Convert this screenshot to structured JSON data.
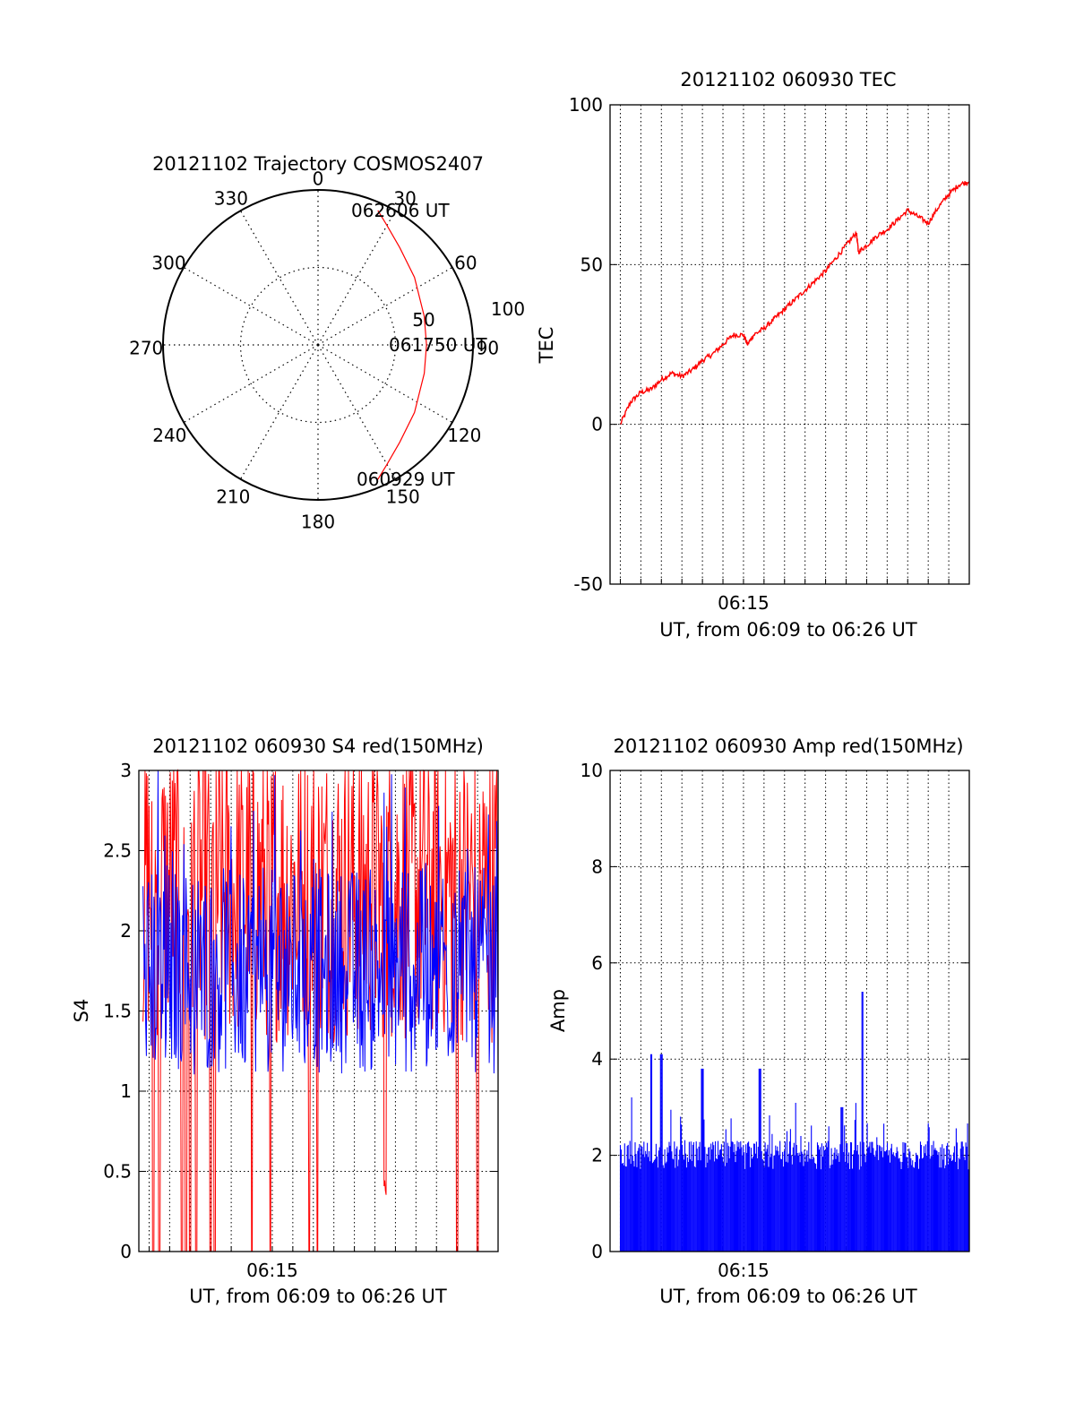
{
  "colors": {
    "red": "#ff0000",
    "blue": "#0000ff",
    "black": "#000000",
    "grid": "#000000"
  },
  "chart_data": [
    {
      "type": "polar",
      "title": "20121102 Trajectory COSMOS2407",
      "angle_labels": [
        "0",
        "30",
        "60",
        "90",
        "120",
        "150",
        "180",
        "210",
        "240",
        "270",
        "300",
        "330"
      ],
      "radius_labels": [
        "50",
        "100"
      ],
      "radius_max": 100,
      "annotations": {
        "start": "060929 UT",
        "mid": "061750 UT",
        "end": "062606 UT"
      },
      "trajectory": {
        "azimuth_deg": [
          24,
          30,
          40,
          55,
          75,
          90,
          105,
          125,
          140,
          150,
          156
        ],
        "radius": [
          95,
          89,
          82,
          76,
          71,
          70,
          71,
          76,
          82,
          89,
          95
        ]
      },
      "grid": true
    },
    {
      "type": "line",
      "title": "20121102 060930 TEC",
      "xlabel": "UT, from 06:09 to 06:26 UT",
      "ylabel": "TEC",
      "xtick_labels": [
        "06:15"
      ],
      "xtick_positions_min": [
        6.0
      ],
      "xlim_min": [
        -0.5,
        17.0
      ],
      "ylim": [
        -50,
        100
      ],
      "yticks": [
        -50,
        0,
        50,
        100
      ],
      "grid": true,
      "series": [
        {
          "color": "#ff0000",
          "x_min": [
            0,
            0.5,
            1,
            1.5,
            2,
            2.5,
            3,
            3.5,
            4,
            4.5,
            5,
            5.5,
            6,
            6.2,
            6.5,
            7,
            7.5,
            8,
            8.5,
            9,
            9.5,
            10,
            10.5,
            11,
            11.5,
            11.6,
            12,
            12.5,
            13,
            13.5,
            14,
            14.5,
            15,
            15.5,
            16,
            16.5,
            17
          ],
          "y": [
            0,
            7,
            10,
            11,
            14,
            16,
            15,
            17,
            20,
            22,
            25,
            28,
            28,
            25,
            28,
            30,
            33,
            36,
            39,
            42,
            45,
            48,
            52,
            56,
            60,
            54,
            56,
            59,
            61,
            64,
            67,
            65,
            63,
            68,
            72,
            75,
            76
          ]
        }
      ]
    },
    {
      "type": "line",
      "title": "20121102 060930 S4 red(150MHz)",
      "xlabel": "UT, from 06:09 to 06:26 UT",
      "ylabel": "S4",
      "xtick_labels": [
        "06:15"
      ],
      "xtick_positions_min": [
        6.0
      ],
      "xlim_min": [
        -0.5,
        17.0
      ],
      "ylim": [
        0,
        3
      ],
      "yticks": [
        "0",
        "0.5",
        "1",
        "1.5",
        "2",
        "2.5",
        "3"
      ],
      "grid": true,
      "series": [
        {
          "color": "#ff0000",
          "description_values": {
            "typical_low": 1.2,
            "typical_high": 3.0
          },
          "drops_to_zero_min": [
            0.2,
            0.5,
            1.6,
            1.8,
            2.0,
            2.3,
            3.0,
            3.2,
            5.0,
            5.9,
            7.8,
            8.2,
            15.0,
            16.0
          ],
          "dip_min": 11.5,
          "dip_value": 0.35
        },
        {
          "color": "#0000ff",
          "description_values": {
            "typical_low": 1.1,
            "typical_high": 3.0
          }
        }
      ]
    },
    {
      "type": "bar",
      "title": "20121102 060930 Amp red(150MHz)",
      "xlabel": "UT, from 06:09 to 06:26 UT",
      "ylabel": "Amp",
      "xtick_labels": [
        "06:15"
      ],
      "xtick_positions_min": [
        6.0
      ],
      "xlim_min": [
        -0.5,
        17.0
      ],
      "ylim": [
        0,
        10
      ],
      "yticks": [
        0,
        2,
        4,
        6,
        8,
        10
      ],
      "grid": true,
      "series": [
        {
          "color": "#0000ff",
          "baseline": 1.7,
          "peaks": [
            {
              "x_min": 1.5,
              "y": 4.1
            },
            {
              "x_min": 2.0,
              "y": 4.1
            },
            {
              "x_min": 4.0,
              "y": 3.8
            },
            {
              "x_min": 6.8,
              "y": 3.8
            },
            {
              "x_min": 11.8,
              "y": 5.4
            },
            {
              "x_min": 10.8,
              "y": 3.0
            }
          ]
        }
      ]
    }
  ]
}
